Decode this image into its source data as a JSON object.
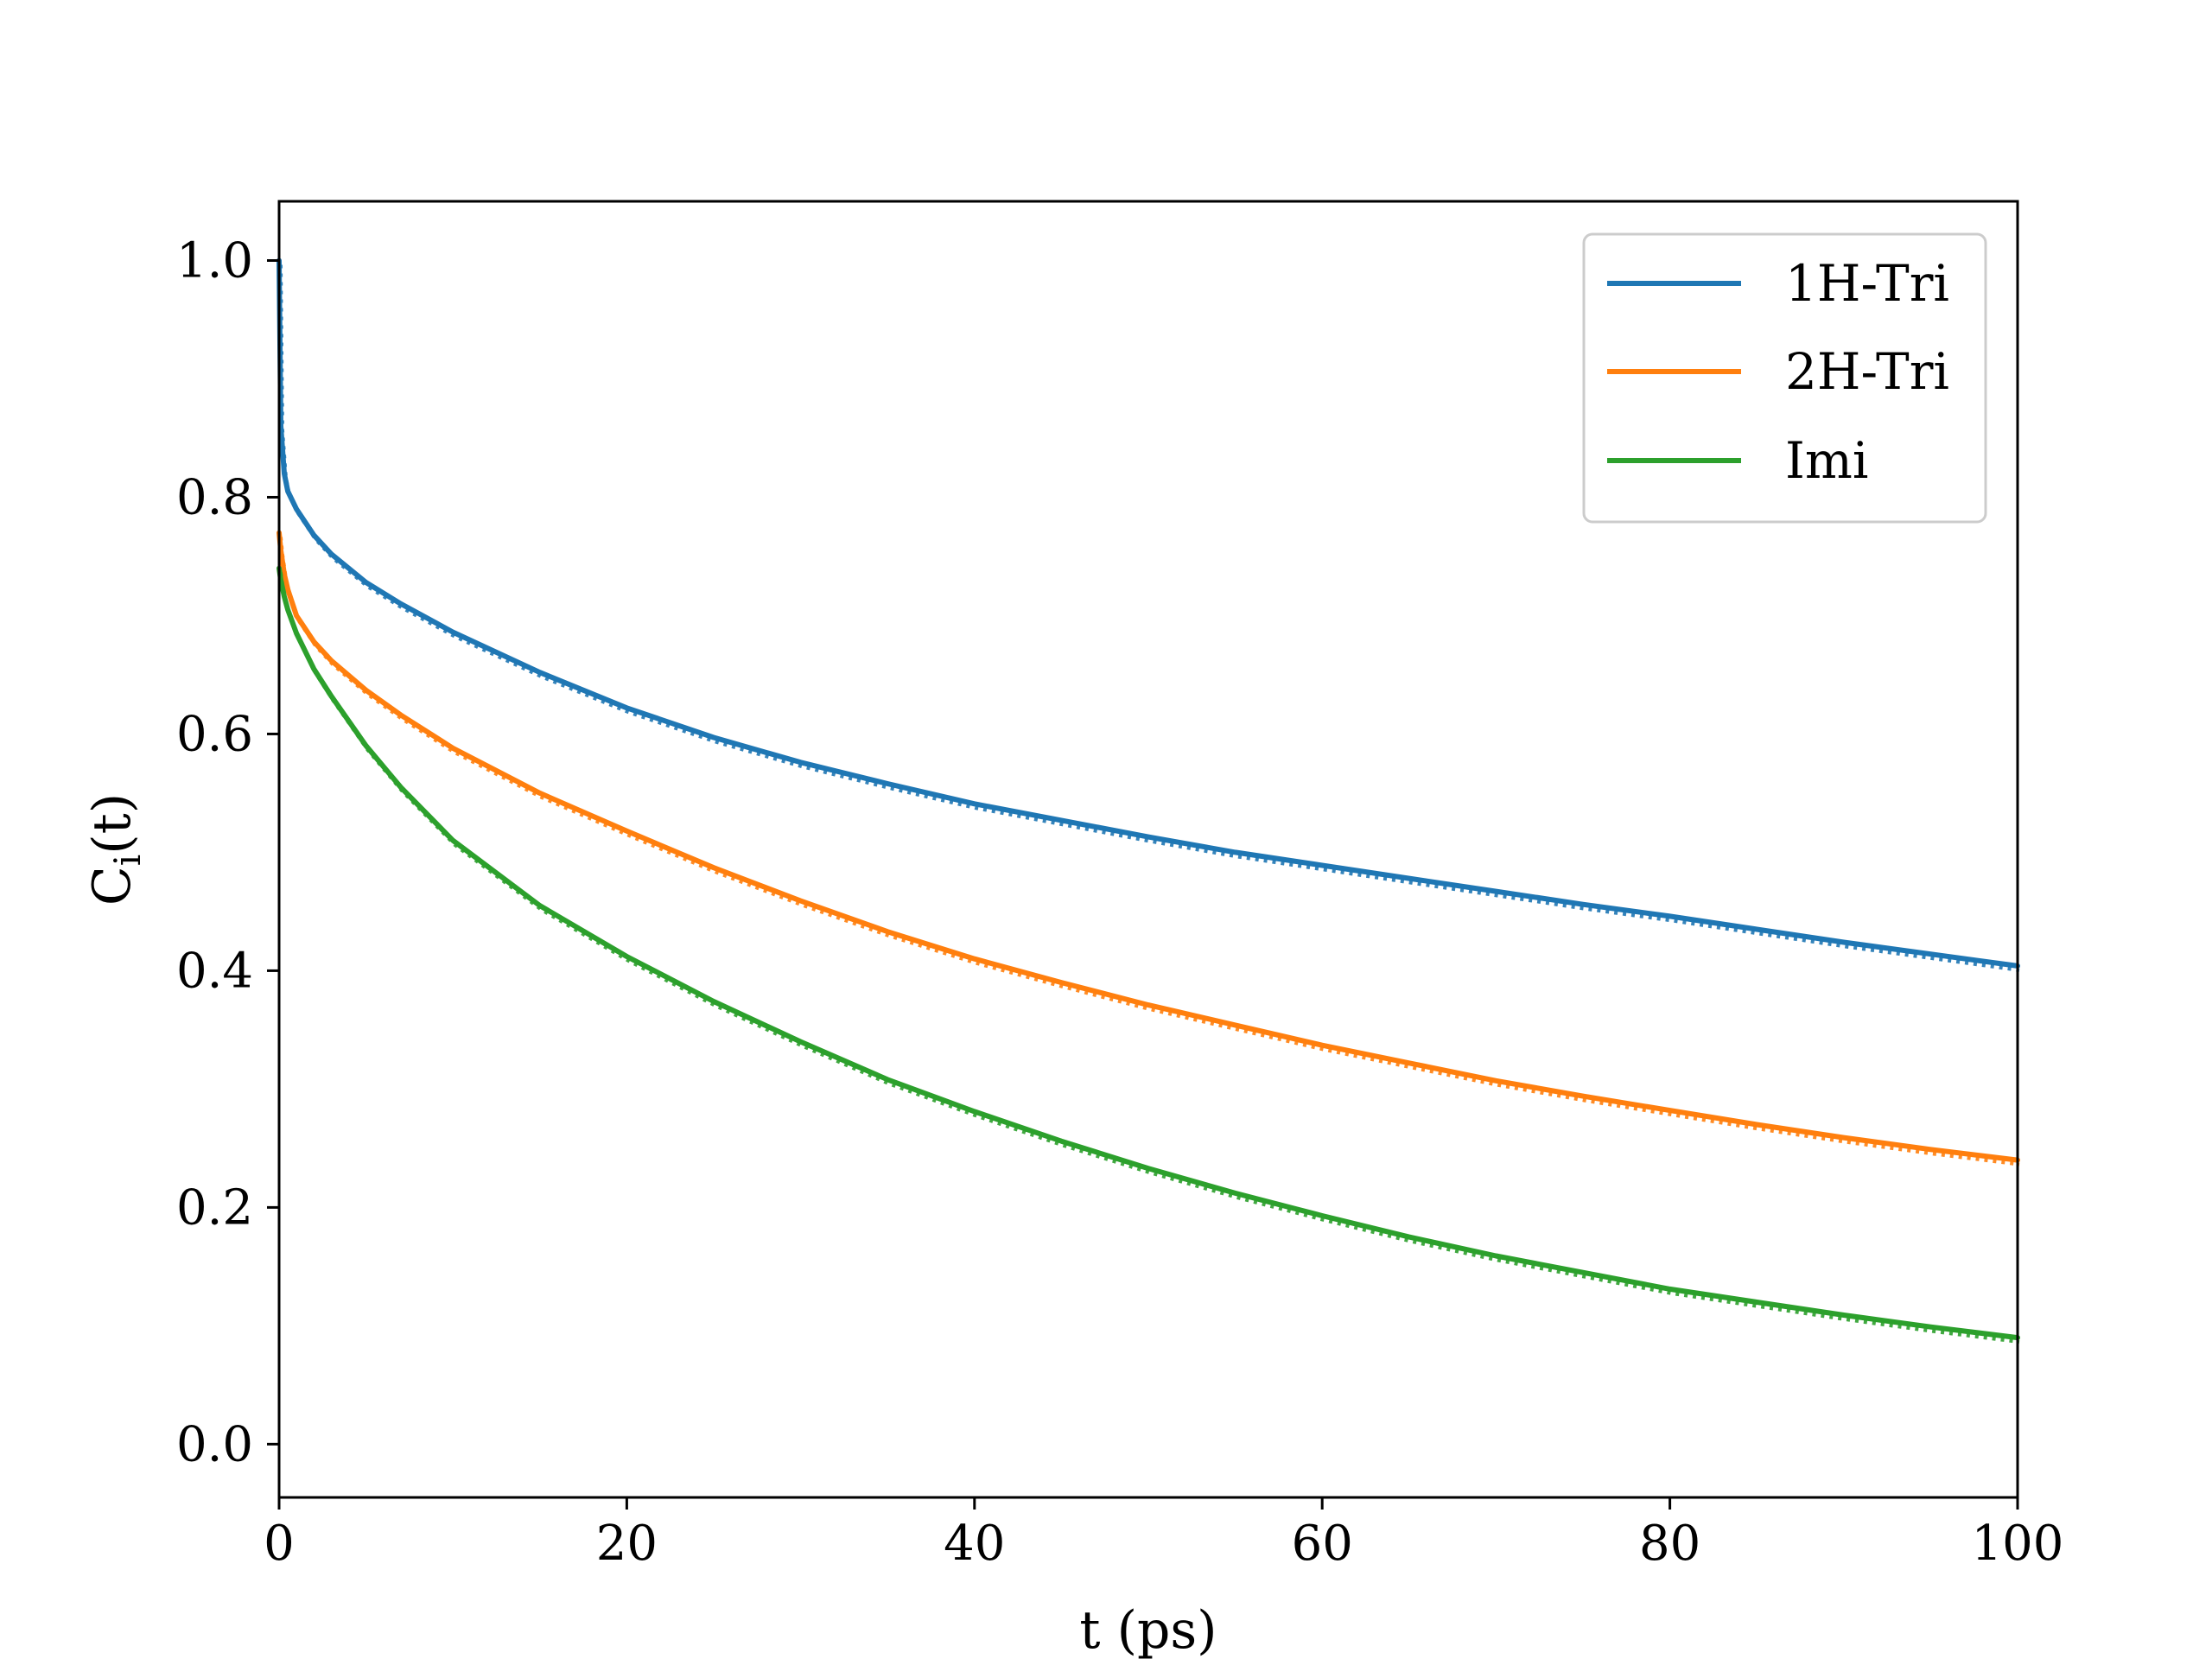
{
  "chart_data": {
    "type": "line",
    "title": "",
    "xlabel": "t (ps)",
    "ylabel_main": "C",
    "ylabel_sub": "i",
    "ylabel_tail": "(t)",
    "xlim": [
      0,
      100
    ],
    "ylim": [
      -0.045,
      1.05
    ],
    "xticks": [
      0,
      20,
      40,
      60,
      80,
      100
    ],
    "yticks": [
      0.0,
      0.2,
      0.4,
      0.6,
      0.8,
      1.0
    ],
    "xtick_labels": [
      "0",
      "20",
      "40",
      "60",
      "80",
      "100"
    ],
    "ytick_labels": [
      "0.0",
      "0.2",
      "0.4",
      "0.6",
      "0.8",
      "1.0"
    ],
    "grid": false,
    "legend_position": "top-right",
    "series": [
      {
        "name": "1H-Tri",
        "color": "#1f77b4",
        "x": [
          0,
          0.1,
          0.3,
          0.5,
          1,
          2,
          3,
          5,
          7,
          10,
          15,
          20,
          25,
          30,
          35,
          40,
          45,
          50,
          55,
          60,
          65,
          70,
          75,
          80,
          85,
          90,
          95,
          100
        ],
        "y": [
          1.0,
          0.86,
          0.82,
          0.805,
          0.79,
          0.768,
          0.752,
          0.728,
          0.71,
          0.686,
          0.652,
          0.622,
          0.597,
          0.576,
          0.558,
          0.541,
          0.527,
          0.513,
          0.5,
          0.489,
          0.478,
          0.467,
          0.456,
          0.446,
          0.435,
          0.424,
          0.414,
          0.404
        ]
      },
      {
        "name": "2H-Tri",
        "color": "#ff7f0e",
        "x": [
          0,
          0.1,
          0.3,
          0.5,
          1,
          2,
          3,
          5,
          7,
          10,
          15,
          20,
          25,
          30,
          35,
          40,
          45,
          50,
          55,
          60,
          65,
          70,
          75,
          80,
          85,
          90,
          95,
          100
        ],
        "y": [
          0.77,
          0.755,
          0.735,
          0.722,
          0.7,
          0.678,
          0.662,
          0.637,
          0.616,
          0.588,
          0.55,
          0.518,
          0.487,
          0.459,
          0.433,
          0.41,
          0.39,
          0.371,
          0.354,
          0.337,
          0.322,
          0.307,
          0.294,
          0.282,
          0.27,
          0.259,
          0.249,
          0.24
        ]
      },
      {
        "name": "Imi",
        "color": "#2ca02c",
        "x": [
          0,
          0.1,
          0.3,
          0.5,
          1,
          2,
          3,
          5,
          7,
          10,
          15,
          20,
          25,
          30,
          35,
          40,
          45,
          50,
          55,
          60,
          65,
          70,
          75,
          80,
          85,
          90,
          95,
          100
        ],
        "y": [
          0.74,
          0.73,
          0.716,
          0.705,
          0.685,
          0.655,
          0.632,
          0.59,
          0.555,
          0.51,
          0.455,
          0.412,
          0.374,
          0.34,
          0.308,
          0.281,
          0.256,
          0.233,
          0.212,
          0.193,
          0.175,
          0.159,
          0.145,
          0.131,
          0.12,
          0.109,
          0.099,
          0.09
        ]
      }
    ]
  }
}
